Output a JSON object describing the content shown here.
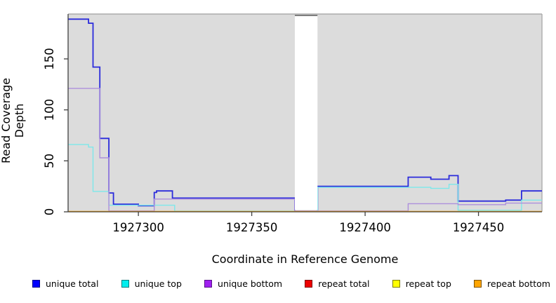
{
  "chart_data": {
    "type": "line",
    "subtype": "step-coverage",
    "title": "",
    "xlabel": "Coordinate in Reference Genome",
    "ylabel": "Read Coverage Depth",
    "xlim": [
      1927269,
      1927478
    ],
    "ylim": [
      0,
      194
    ],
    "x_ticks": [
      1927300,
      1927350,
      1927400,
      1927450
    ],
    "y_ticks": [
      0,
      50,
      100,
      150
    ],
    "grid": false,
    "plot_bg": "#DCDCDC",
    "axis_color": "#404040",
    "box_color": "#ABABAB",
    "tick_label_color": "#000000",
    "masked_region": {
      "x_start": 1927369,
      "x_end": 1927379,
      "fill": "#FFFFFF",
      "top_border": "#7F7F7F"
    },
    "series": [
      {
        "name": "unique total",
        "color": "#2B2BDB",
        "width": 1.8,
        "points": [
          [
            1927269,
            189
          ],
          [
            1927278,
            185
          ],
          [
            1927280,
            142
          ],
          [
            1927283,
            72
          ],
          [
            1927287,
            18.5
          ],
          [
            1927289,
            7.5
          ],
          [
            1927300,
            6
          ],
          [
            1927307,
            19
          ],
          [
            1927308,
            20.5
          ],
          [
            1927315,
            13.5
          ],
          [
            1927369,
            0.5
          ],
          [
            1927379,
            25
          ],
          [
            1927419,
            34
          ],
          [
            1927429,
            32
          ],
          [
            1927437,
            35.5
          ],
          [
            1927441,
            10.5
          ],
          [
            1927462,
            11.5
          ],
          [
            1927469,
            20.5
          ],
          [
            1927478,
            20.5
          ]
        ]
      },
      {
        "name": "unique top",
        "color": "#7DE8EA",
        "width": 1.4,
        "points": [
          [
            1927269,
            66
          ],
          [
            1927278,
            63.5
          ],
          [
            1927280,
            20
          ],
          [
            1927287,
            6.5
          ],
          [
            1927316,
            0.6
          ],
          [
            1927379,
            24
          ],
          [
            1927429,
            23
          ],
          [
            1927437,
            27
          ],
          [
            1927441,
            1.5
          ],
          [
            1927469,
            11.5
          ],
          [
            1927478,
            11.5
          ]
        ]
      },
      {
        "name": "unique bottom",
        "color": "#AD8FDC",
        "width": 1.4,
        "points": [
          [
            1927269,
            121
          ],
          [
            1927283,
            53
          ],
          [
            1927287,
            0.8
          ],
          [
            1927307,
            12.5
          ],
          [
            1927369,
            0.8
          ],
          [
            1927419,
            8
          ],
          [
            1927441,
            7
          ],
          [
            1927462,
            8.5
          ],
          [
            1927478,
            8.5
          ]
        ]
      },
      {
        "name": "repeat total",
        "color": "#E02020",
        "width": 1.4,
        "points": [
          [
            1927269,
            0.2
          ],
          [
            1927478,
            0.2
          ]
        ]
      },
      {
        "name": "repeat top",
        "color": "#F5F500",
        "width": 1.4,
        "points": [
          [
            1927269,
            0.2
          ],
          [
            1927478,
            0.2
          ]
        ]
      },
      {
        "name": "repeat bottom",
        "color": "#FFA500",
        "width": 1.6,
        "points": [
          [
            1927269,
            0.3
          ],
          [
            1927478,
            0.3
          ]
        ]
      }
    ],
    "legend": [
      {
        "label": "unique total",
        "fill": "#0000FF",
        "border": "#00008B"
      },
      {
        "label": "unique top",
        "fill": "#00EEEE",
        "border": "#007D7D"
      },
      {
        "label": "unique bottom",
        "fill": "#A020F0",
        "border": "#58128A"
      },
      {
        "label": "repeat total",
        "fill": "#EE0000",
        "border": "#7D0000"
      },
      {
        "label": "repeat top",
        "fill": "#FFFF00",
        "border": "#7D7D00"
      },
      {
        "label": "repeat bottom",
        "fill": "#FFA500",
        "border": "#7D5200"
      }
    ],
    "legend_position": "bottom"
  }
}
